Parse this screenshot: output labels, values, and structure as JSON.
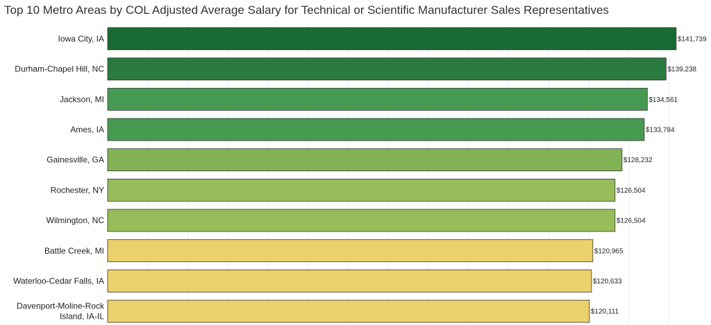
{
  "chart_data": {
    "type": "bar",
    "orientation": "horizontal",
    "title": "Top 10 Metro Areas by COL Adjusted Average Salary for Technical or Scientific Manufacturer Sales Representatives",
    "categories": [
      "Iowa City, IA",
      "Durham-Chapel Hill, NC",
      "Jackson, MI",
      "Ames, IA",
      "Gainesville, GA",
      "Rochester, NY",
      "Wilmington, NC",
      "Battle Creek, MI",
      "Waterloo-Cedar Falls, IA",
      "Davenport-Moline-Rock Island, IA-IL"
    ],
    "values": [
      141739,
      139238,
      134561,
      133784,
      128232,
      126504,
      126504,
      120965,
      120633,
      120111
    ],
    "value_labels": [
      "$141,739",
      "$139,238",
      "$134,561",
      "$133,784",
      "$128,232",
      "$126,504",
      "$126,504",
      "$120,965",
      "$120,633",
      "$120,111"
    ],
    "bar_colors": [
      "#1a6b33",
      "#2a7a3f",
      "#479a51",
      "#479a51",
      "#82b356",
      "#97bc5a",
      "#97bc5a",
      "#ecd06b",
      "#ecd06b",
      "#ecd06b"
    ],
    "xlim": [
      0,
      148000
    ],
    "grid": true,
    "legend": "none"
  }
}
